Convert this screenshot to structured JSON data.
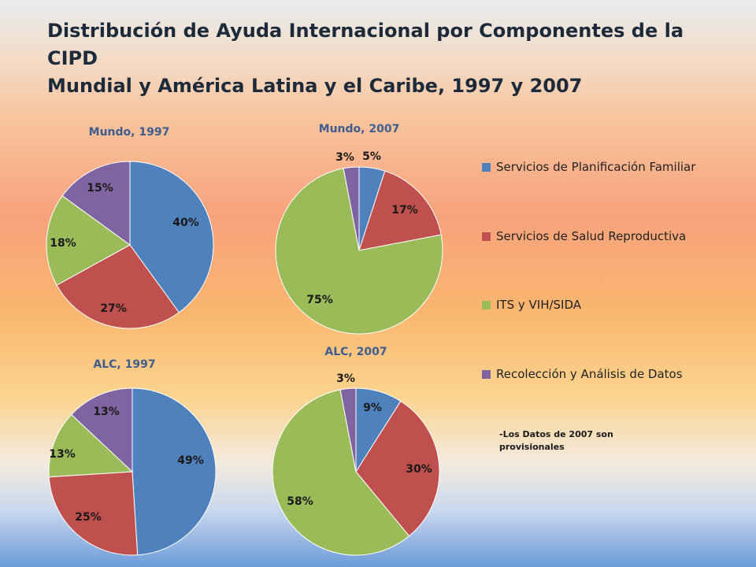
{
  "title": {
    "line1": "Distribución de Ayuda Internacional por Componentes de la CIPD",
    "line2": "Mundial y América Latina y el Caribe, 1997 y 2007"
  },
  "note": "-Los  Datos de 2007 son provisionales",
  "legend": [
    {
      "label": "Servicios de Planificación Familiar",
      "color": "#4f81bd"
    },
    {
      "label": "Servicios de Salud Reproductiva",
      "color": "#c0504d"
    },
    {
      "label": "ITS y VIH/SIDA",
      "color": "#9bbb59"
    },
    {
      "label": "Recolección y Análisis de Datos",
      "color": "#8064a2"
    }
  ],
  "chart_data": [
    {
      "type": "pie",
      "title": "Mundo, 1997",
      "categories": [
        "Servicios de Planificación Familiar",
        "Servicios de Salud Reproductiva",
        "ITS y VIH/SIDA",
        "Recolección y Análisis de Datos"
      ],
      "values": [
        40,
        27,
        18,
        15
      ],
      "labels": [
        "40%",
        "27%",
        "18%",
        "15%"
      ]
    },
    {
      "type": "pie",
      "title": "Mundo, 2007",
      "categories": [
        "Servicios de Planificación Familiar",
        "Servicios de Salud Reproductiva",
        "ITS y VIH/SIDA",
        "Recolección y Análisis de Datos"
      ],
      "values": [
        5,
        17,
        75,
        3
      ],
      "labels": [
        "5%",
        "17%",
        "75%",
        "3%"
      ]
    },
    {
      "type": "pie",
      "title": "ALC, 1997",
      "categories": [
        "Servicios de Planificación Familiar",
        "Servicios de Salud Reproductiva",
        "ITS y VIH/SIDA",
        "Recolección y Análisis de Datos"
      ],
      "values": [
        49,
        25,
        13,
        13
      ],
      "labels": [
        "49%",
        "25%",
        "13%",
        "13%"
      ]
    },
    {
      "type": "pie",
      "title": "ALC, 2007",
      "categories": [
        "Servicios de Planificación Familiar",
        "Servicios de Salud Reproductiva",
        "ITS y VIH/SIDA",
        "Recolección y Análisis de Datos"
      ],
      "values": [
        9,
        30,
        58,
        3
      ],
      "labels": [
        "9%",
        "30%",
        "58%",
        "3%"
      ]
    }
  ]
}
